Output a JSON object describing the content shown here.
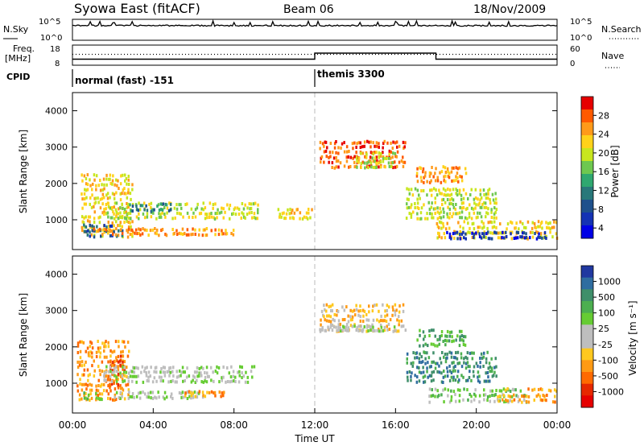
{
  "header": {
    "station": "Syowa East (fitACF)",
    "beam": "Beam 06",
    "date": "18/Nov/2009"
  },
  "top_panels": {
    "nsky_label": "N.Sky",
    "nsky_ticks": [
      "10^5",
      "10^0"
    ],
    "nsearch_label": "N.Search",
    "nsearch_ticks": [
      "10^5",
      "10^0"
    ],
    "freq_label_1": "Freq.",
    "freq_label_2": "[MHz]",
    "freq_ticks": [
      "18",
      "8"
    ],
    "nave_label": "Nave",
    "nave_ticks": [
      "60",
      "0"
    ],
    "cpid_label": "CPID",
    "cpid_modes": [
      {
        "label": "normal (fast) -151",
        "start_hour": 0,
        "end_hour": 12
      },
      {
        "label": "themis 3300",
        "start_hour": 12,
        "end_hour": 24
      }
    ]
  },
  "power_colorbar": {
    "label": "Power [dB]",
    "ticks": [
      "28",
      "24",
      "20",
      "16",
      "12",
      "8",
      "4"
    ],
    "colors": [
      "#e60000",
      "#ff5a00",
      "#ff9a1a",
      "#ffd21a",
      "#c8e61e",
      "#6ec850",
      "#2fa870",
      "#28787a",
      "#1e508c",
      "#1432b4",
      "#0000e6"
    ]
  },
  "velocity_colorbar": {
    "label": "Velocity [m s⁻¹]",
    "ticks": [
      "1000",
      "500",
      "100",
      "25",
      "-25",
      "-100",
      "-500",
      "-1000"
    ],
    "colors": [
      "#2038a0",
      "#2f6da0",
      "#3f8f6a",
      "#4caf50",
      "#66cc33",
      "#bebebe",
      "#bebebe",
      "#ffc81e",
      "#ff9a14",
      "#ff6a00",
      "#e62800",
      "#e60000"
    ]
  },
  "axes": {
    "ylabel": "Slant Range [km]",
    "yticks": [
      "4000",
      "3000",
      "2000",
      "1000"
    ],
    "xlabel": "Time UT",
    "xticks": [
      "00:00",
      "04:00",
      "08:00",
      "12:00",
      "16:00",
      "20:00",
      "00:00"
    ]
  },
  "chart_data": [
    {
      "type": "line",
      "title": "N.Sky / N.Search",
      "x_range_hours": [
        0,
        24
      ],
      "series": [
        {
          "name": "N.Sky",
          "values_description": "noise level, mostly constant near 10^5 with spikes"
        }
      ]
    },
    {
      "type": "line",
      "title": "Freq. / Nave",
      "x_range_hours": [
        0,
        24
      ],
      "series": [
        {
          "name": "Freq. [MHz]",
          "segments": [
            {
              "start_hour": 0,
              "end_hour": 12,
              "value": 11
            },
            {
              "start_hour": 12,
              "end_hour": 18,
              "value": 14
            },
            {
              "start_hour": 18,
              "end_hour": 24,
              "value": 11
            }
          ]
        }
      ]
    },
    {
      "type": "heatmap",
      "title": "Power [dB]",
      "xlabel": "Time UT",
      "ylabel": "Slant Range [km]",
      "x_range_hours": [
        0,
        24
      ],
      "ylim": [
        180,
        4500
      ],
      "zlim": [
        0,
        30
      ],
      "regions": [
        {
          "t0": 0.4,
          "t1": 3.0,
          "r0": 500,
          "r1": 2300,
          "level": 3
        },
        {
          "t0": 0.5,
          "t1": 2.5,
          "r0": 500,
          "r1": 900,
          "level": 8
        },
        {
          "t0": 1.5,
          "t1": 9.2,
          "r0": 1000,
          "r1": 1500,
          "level": 4
        },
        {
          "t0": 2.8,
          "t1": 5.0,
          "r0": 1200,
          "r1": 1500,
          "level": 7
        },
        {
          "t0": 1.0,
          "t1": 8.0,
          "r0": 550,
          "r1": 800,
          "level": 2
        },
        {
          "t0": 10.0,
          "t1": 11.9,
          "r0": 1000,
          "r1": 1350,
          "level": 3
        },
        {
          "t0": 12.2,
          "t1": 16.5,
          "r0": 2400,
          "r1": 3200,
          "level": 1
        },
        {
          "t0": 14.0,
          "t1": 16.0,
          "r0": 2400,
          "r1": 2900,
          "level": 4
        },
        {
          "t0": 17.0,
          "t1": 19.5,
          "r0": 2000,
          "r1": 2500,
          "level": 2
        },
        {
          "t0": 16.5,
          "t1": 21.0,
          "r0": 1000,
          "r1": 1900,
          "level": 4
        },
        {
          "t0": 18.0,
          "t1": 24.0,
          "r0": 450,
          "r1": 1000,
          "level": 3
        },
        {
          "t0": 18.5,
          "t1": 23.5,
          "r0": 450,
          "r1": 700,
          "level": 9
        }
      ]
    },
    {
      "type": "heatmap",
      "title": "Velocity [m s⁻¹]",
      "xlabel": "Time UT",
      "ylabel": "Slant Range [km]",
      "x_range_hours": [
        0,
        24
      ],
      "ylim": [
        180,
        4500
      ],
      "zlim": [
        -1000,
        1000
      ],
      "regions": [
        {
          "t0": 0.2,
          "t1": 2.8,
          "r0": 500,
          "r1": 2200,
          "level": 8
        },
        {
          "t0": 1.8,
          "t1": 2.6,
          "r0": 800,
          "r1": 1800,
          "level": 9
        },
        {
          "t0": 1.5,
          "t1": 9.0,
          "r0": 1000,
          "r1": 1500,
          "level": 5
        },
        {
          "t0": 2.0,
          "t1": 6.5,
          "r0": 550,
          "r1": 800,
          "level": 5
        },
        {
          "t0": 5.5,
          "t1": 7.5,
          "r0": 600,
          "r1": 800,
          "level": 8
        },
        {
          "t0": 0.5,
          "t1": 1.5,
          "r0": 500,
          "r1": 800,
          "level": 4
        },
        {
          "t0": 12.2,
          "t1": 16.5,
          "r0": 2400,
          "r1": 3200,
          "level": 7
        },
        {
          "t0": 12.2,
          "t1": 16.0,
          "r0": 2400,
          "r1": 2600,
          "level": 5
        },
        {
          "t0": 17.0,
          "t1": 19.5,
          "r0": 2000,
          "r1": 2500,
          "level": 3
        },
        {
          "t0": 16.5,
          "t1": 21.0,
          "r0": 1000,
          "r1": 1900,
          "level": 2
        },
        {
          "t0": 17.5,
          "t1": 22.5,
          "r0": 450,
          "r1": 900,
          "level": 4
        },
        {
          "t0": 21.0,
          "t1": 24.0,
          "r0": 450,
          "r1": 900,
          "level": 8
        }
      ]
    }
  ]
}
